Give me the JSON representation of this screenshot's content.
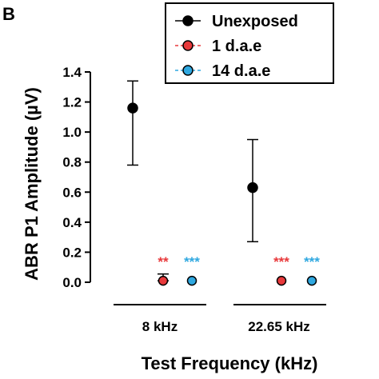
{
  "chart_data": {
    "type": "scatter",
    "panel_label": "B",
    "xlabel": "Test Frequency (kHz)",
    "ylabel": "ABR P1 Amplitude (µV)",
    "categories": [
      "8 kHz",
      "22.65 kHz"
    ],
    "ylim": [
      0.0,
      1.4
    ],
    "yticks": [
      "0.0",
      "0.2",
      "0.4",
      "0.6",
      "0.8",
      "1.0",
      "1.2",
      "1.4"
    ],
    "grid": false,
    "legend_position": "top-right",
    "series": [
      {
        "name": "Unexposed",
        "color": "#000000",
        "values": [
          1.16,
          0.63
        ],
        "err_low": [
          0.78,
          0.27
        ],
        "err_high": [
          1.34,
          0.95
        ]
      },
      {
        "name": "1 d.a.e",
        "color": "#e8393b",
        "values": [
          0.01,
          0.01
        ],
        "err_low": [
          0.01,
          0.01
        ],
        "err_high": [
          0.055,
          0.01
        ]
      },
      {
        "name": "14 d.a.e",
        "color": "#2fa8e0",
        "values": [
          0.01,
          0.01
        ],
        "err_low": [
          0.01,
          0.01
        ],
        "err_high": [
          0.01,
          0.01
        ]
      }
    ],
    "annotations": [
      {
        "category": 0,
        "series": "1 d.a.e",
        "text": "**",
        "color": "#e8393b"
      },
      {
        "category": 0,
        "series": "14 d.a.e",
        "text": "***",
        "color": "#2fa8e0"
      },
      {
        "category": 1,
        "series": "1 d.a.e",
        "text": "***",
        "color": "#e8393b"
      },
      {
        "category": 1,
        "series": "14 d.a.e",
        "text": "***",
        "color": "#2fa8e0"
      }
    ]
  }
}
